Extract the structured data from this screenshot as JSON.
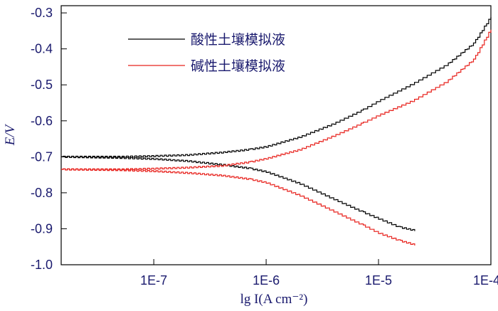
{
  "chart_data": {
    "type": "line",
    "xlabel": "lg I(A cm⁻²)",
    "ylabel": "E/V",
    "x_scale": "log",
    "xlim": [
      1.5e-08,
      0.0001
    ],
    "ylim": [
      -1.0,
      -0.28
    ],
    "x_ticks": [
      {
        "value": 1e-07,
        "label": "1E-7"
      },
      {
        "value": 1e-06,
        "label": "1E-6"
      },
      {
        "value": 1e-05,
        "label": "1E-5"
      },
      {
        "value": 0.0001,
        "label": "1E-4"
      }
    ],
    "y_ticks": [
      {
        "value": -0.3,
        "label": "-0.3"
      },
      {
        "value": -0.4,
        "label": "-0.4"
      },
      {
        "value": -0.5,
        "label": "-0.5"
      },
      {
        "value": -0.6,
        "label": "-0.6"
      },
      {
        "value": -0.7,
        "label": "-0.7"
      },
      {
        "value": -0.8,
        "label": "-0.8"
      },
      {
        "value": -0.9,
        "label": "-0.9"
      },
      {
        "value": -1.0,
        "label": "-1.0"
      }
    ],
    "legend_position": "top-center",
    "grid": false,
    "series": [
      {
        "name": "酸性土壤模拟液",
        "color": "#000000",
        "anodic": [
          [
            1.5e-08,
            -0.7
          ],
          [
            5e-08,
            -0.7
          ],
          [
            1e-07,
            -0.698
          ],
          [
            2e-07,
            -0.695
          ],
          [
            4e-07,
            -0.688
          ],
          [
            7e-07,
            -0.68
          ],
          [
            1e-06,
            -0.672
          ],
          [
            2e-06,
            -0.645
          ],
          [
            4e-06,
            -0.608
          ],
          [
            7e-06,
            -0.572
          ],
          [
            1e-05,
            -0.545
          ],
          [
            2e-05,
            -0.498
          ],
          [
            4e-05,
            -0.445
          ],
          [
            7e-05,
            -0.385
          ],
          [
            0.0001,
            -0.31
          ]
        ],
        "cathodic": [
          [
            1.5e-08,
            -0.7
          ],
          [
            5e-08,
            -0.703
          ],
          [
            1e-07,
            -0.706
          ],
          [
            2e-07,
            -0.712
          ],
          [
            4e-07,
            -0.722
          ],
          [
            7e-07,
            -0.732
          ],
          [
            1e-06,
            -0.742
          ],
          [
            2e-06,
            -0.775
          ],
          [
            4e-06,
            -0.818
          ],
          [
            7e-06,
            -0.852
          ],
          [
            1e-05,
            -0.872
          ],
          [
            1.5e-05,
            -0.895
          ],
          [
            2.1e-05,
            -0.905
          ]
        ]
      },
      {
        "name": "碱性土壤模拟液",
        "color": "#e8231e",
        "anodic": [
          [
            1.5e-08,
            -0.735
          ],
          [
            5e-08,
            -0.735
          ],
          [
            1e-07,
            -0.733
          ],
          [
            2e-07,
            -0.73
          ],
          [
            4e-07,
            -0.725
          ],
          [
            7e-07,
            -0.715
          ],
          [
            1e-06,
            -0.705
          ],
          [
            2e-06,
            -0.68
          ],
          [
            4e-06,
            -0.642
          ],
          [
            7e-06,
            -0.608
          ],
          [
            1e-05,
            -0.585
          ],
          [
            2e-05,
            -0.545
          ],
          [
            4e-05,
            -0.492
          ],
          [
            7e-05,
            -0.43
          ],
          [
            0.0001,
            -0.345
          ]
        ],
        "cathodic": [
          [
            1.5e-08,
            -0.735
          ],
          [
            5e-08,
            -0.737
          ],
          [
            1e-07,
            -0.74
          ],
          [
            2e-07,
            -0.745
          ],
          [
            4e-07,
            -0.752
          ],
          [
            7e-07,
            -0.762
          ],
          [
            1e-06,
            -0.772
          ],
          [
            2e-06,
            -0.808
          ],
          [
            4e-06,
            -0.852
          ],
          [
            7e-06,
            -0.888
          ],
          [
            1e-05,
            -0.912
          ],
          [
            1.5e-05,
            -0.932
          ],
          [
            2.1e-05,
            -0.945
          ]
        ]
      }
    ]
  }
}
